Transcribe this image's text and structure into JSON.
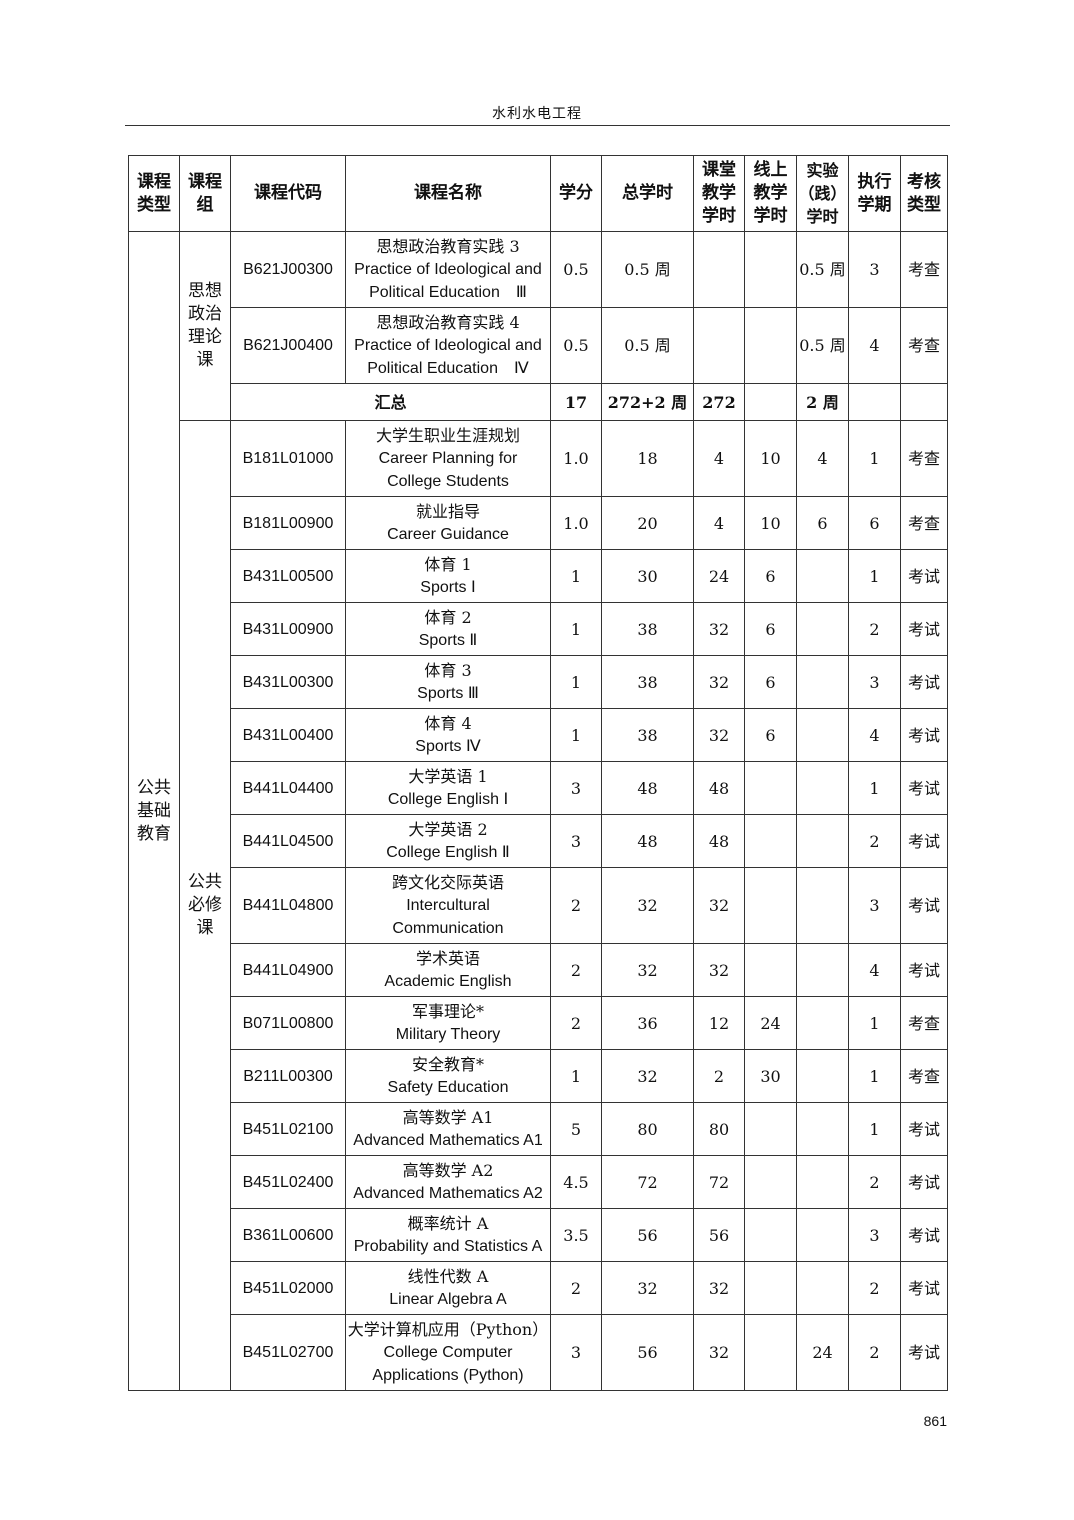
{
  "header": {
    "title": "水利水电工程"
  },
  "page_number": "861",
  "columns": [
    "课程类型",
    "课程组",
    "课程代码",
    "课程名称",
    "学分",
    "总学时",
    "课堂教学学时",
    "线上教学学时",
    "实验（践）学时",
    "执行学期",
    "考核类型"
  ],
  "columns_display": [
    [
      "课程",
      "类型"
    ],
    [
      "课程",
      "组"
    ],
    [
      "课程代码"
    ],
    [
      "课程名称"
    ],
    [
      "学分"
    ],
    [
      "总学时"
    ],
    [
      "课堂",
      "教学",
      "学时"
    ],
    [
      "线上",
      "教学",
      "学时"
    ],
    [
      "实验",
      "（践）",
      "学时"
    ],
    [
      "执行",
      "学期"
    ],
    [
      "考核",
      "类型"
    ]
  ],
  "category": [
    "公共",
    "基础",
    "教育"
  ],
  "groups": [
    {
      "label": [
        "思想",
        "政治",
        "理论",
        "课"
      ],
      "rows": [
        {
          "code": "B621J00300",
          "name": [
            "思想政治教育实践 3",
            "Practice of Ideological and",
            "Political Education　Ⅲ"
          ],
          "credit": "0.5",
          "total": "0.5 周",
          "class": "",
          "online": "",
          "lab": "0.5 周",
          "term": "3",
          "exam": "考查"
        },
        {
          "code": "B621J00400",
          "name": [
            "思想政治教育实践 4",
            "Practice of Ideological and",
            "Political Education　Ⅳ"
          ],
          "credit": "0.5",
          "total": "0.5 周",
          "class": "",
          "online": "",
          "lab": "0.5 周",
          "term": "4",
          "exam": "考查"
        }
      ],
      "summary": {
        "label": "汇总",
        "credit": "17",
        "total": "272+2 周",
        "class": "272",
        "online": "",
        "lab": "2 周",
        "term": "",
        "exam": ""
      }
    },
    {
      "label": [
        "公共",
        "必修",
        "课"
      ],
      "rows": [
        {
          "code": "B181L01000",
          "name": [
            "大学生职业生涯规划",
            "Career Planning for",
            "College Students"
          ],
          "credit": "1.0",
          "total": "18",
          "class": "4",
          "online": "10",
          "lab": "4",
          "term": "1",
          "exam": "考查"
        },
        {
          "code": "B181L00900",
          "name": [
            "就业指导",
            "Career Guidance"
          ],
          "credit": "1.0",
          "total": "20",
          "class": "4",
          "online": "10",
          "lab": "6",
          "term": "6",
          "exam": "考查"
        },
        {
          "code": "B431L00500",
          "name": [
            "体育 1",
            "Sports Ⅰ"
          ],
          "credit": "1",
          "total": "30",
          "class": "24",
          "online": "6",
          "lab": "",
          "term": "1",
          "exam": "考试"
        },
        {
          "code": "B431L00900",
          "name": [
            "体育 2",
            "Sports Ⅱ"
          ],
          "credit": "1",
          "total": "38",
          "class": "32",
          "online": "6",
          "lab": "",
          "term": "2",
          "exam": "考试"
        },
        {
          "code": "B431L00300",
          "name": [
            "体育 3",
            "Sports Ⅲ"
          ],
          "credit": "1",
          "total": "38",
          "class": "32",
          "online": "6",
          "lab": "",
          "term": "3",
          "exam": "考试"
        },
        {
          "code": "B431L00400",
          "name": [
            "体育 4",
            "Sports Ⅳ"
          ],
          "credit": "1",
          "total": "38",
          "class": "32",
          "online": "6",
          "lab": "",
          "term": "4",
          "exam": "考试"
        },
        {
          "code": "B441L04400",
          "name": [
            "大学英语 1",
            "College English Ⅰ"
          ],
          "credit": "3",
          "total": "48",
          "class": "48",
          "online": "",
          "lab": "",
          "term": "1",
          "exam": "考试"
        },
        {
          "code": "B441L04500",
          "name": [
            "大学英语 2",
            "College English Ⅱ"
          ],
          "credit": "3",
          "total": "48",
          "class": "48",
          "online": "",
          "lab": "",
          "term": "2",
          "exam": "考试"
        },
        {
          "code": "B441L04800",
          "name": [
            "跨文化交际英语",
            "Intercultural",
            "Communication"
          ],
          "credit": "2",
          "total": "32",
          "class": "32",
          "online": "",
          "lab": "",
          "term": "3",
          "exam": "考试"
        },
        {
          "code": "B441L04900",
          "name": [
            "学术英语",
            "Academic English"
          ],
          "credit": "2",
          "total": "32",
          "class": "32",
          "online": "",
          "lab": "",
          "term": "4",
          "exam": "考试"
        },
        {
          "code": "B071L00800",
          "name": [
            "军事理论*",
            "Military Theory"
          ],
          "credit": "2",
          "total": "36",
          "class": "12",
          "online": "24",
          "lab": "",
          "term": "1",
          "exam": "考查"
        },
        {
          "code": "B211L00300",
          "name": [
            "安全教育*",
            "Safety Education"
          ],
          "credit": "1",
          "total": "32",
          "class": "2",
          "online": "30",
          "lab": "",
          "term": "1",
          "exam": "考查"
        },
        {
          "code": "B451L02100",
          "name": [
            "高等数学 A1",
            "Advanced Mathematics A1"
          ],
          "credit": "5",
          "total": "80",
          "class": "80",
          "online": "",
          "lab": "",
          "term": "1",
          "exam": "考试"
        },
        {
          "code": "B451L02400",
          "name": [
            "高等数学 A2",
            "Advanced Mathematics A2"
          ],
          "credit": "4.5",
          "total": "72",
          "class": "72",
          "online": "",
          "lab": "",
          "term": "2",
          "exam": "考试"
        },
        {
          "code": "B361L00600",
          "name": [
            "概率统计 A",
            "Probability and Statistics A"
          ],
          "credit": "3.5",
          "total": "56",
          "class": "56",
          "online": "",
          "lab": "",
          "term": "3",
          "exam": "考试"
        },
        {
          "code": "B451L02000",
          "name": [
            "线性代数 A",
            "Linear Algebra A"
          ],
          "credit": "2",
          "total": "32",
          "class": "32",
          "online": "",
          "lab": "",
          "term": "2",
          "exam": "考试"
        },
        {
          "code": "B451L02700",
          "name": [
            "大学计算机应用（Python）",
            "College Computer",
            "Applications (Python)"
          ],
          "credit": "3",
          "total": "56",
          "class": "32",
          "online": "",
          "lab": "24",
          "term": "2",
          "exam": "考试"
        }
      ]
    }
  ]
}
